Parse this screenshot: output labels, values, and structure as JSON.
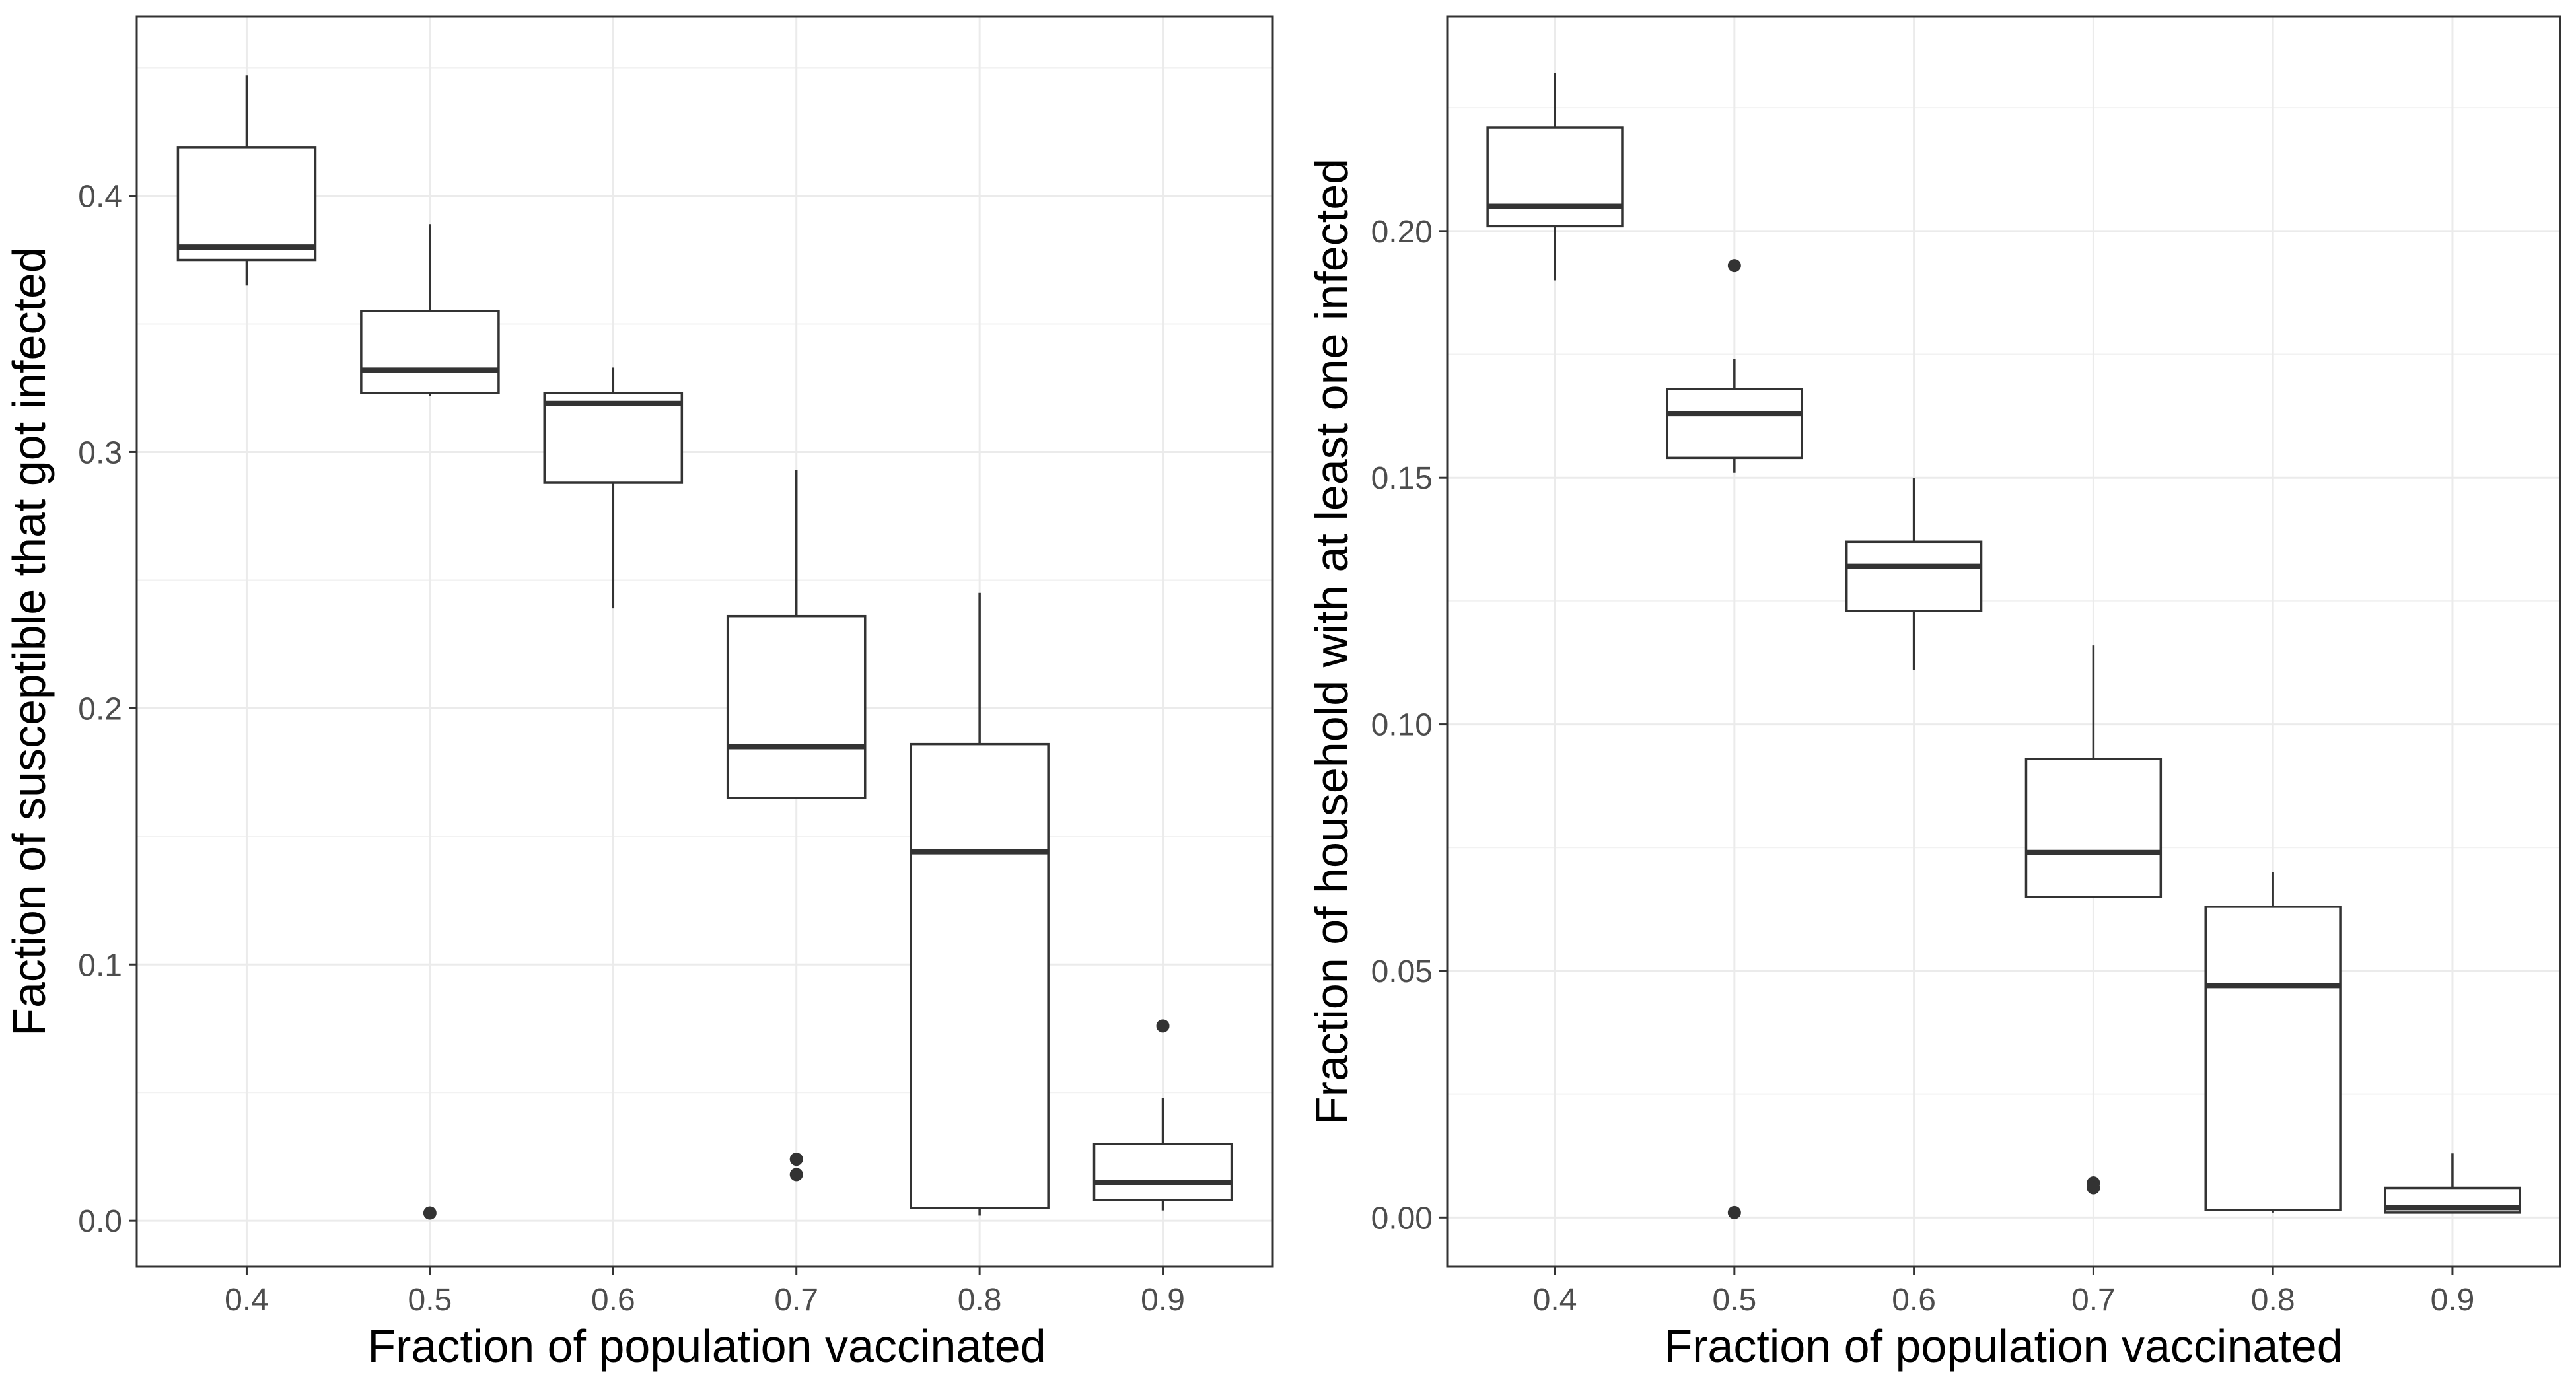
{
  "chart_data": [
    {
      "type": "box",
      "xlabel": "Fraction of population vaccinated",
      "ylabel": "Faction of susceptible that got infected",
      "categories": [
        "0.4",
        "0.5",
        "0.6",
        "0.7",
        "0.8",
        "0.9"
      ],
      "ylim": [
        -0.018,
        0.47
      ],
      "yticks": [
        "0.0",
        "0.1",
        "0.2",
        "0.3",
        "0.4"
      ],
      "grid": true,
      "boxes": [
        {
          "x": "0.4",
          "whisker_low": 0.365,
          "q1": 0.375,
          "median": 0.38,
          "q3": 0.419,
          "whisker_high": 0.447,
          "outliers": []
        },
        {
          "x": "0.5",
          "whisker_low": 0.322,
          "q1": 0.323,
          "median": 0.332,
          "q3": 0.355,
          "whisker_high": 0.389,
          "outliers": [
            0.003
          ]
        },
        {
          "x": "0.6",
          "whisker_low": 0.239,
          "q1": 0.288,
          "median": 0.319,
          "q3": 0.323,
          "whisker_high": 0.333,
          "outliers": []
        },
        {
          "x": "0.7",
          "whisker_low": 0.165,
          "q1": 0.165,
          "median": 0.185,
          "q3": 0.236,
          "whisker_high": 0.293,
          "outliers": [
            0.024,
            0.018
          ]
        },
        {
          "x": "0.8",
          "whisker_low": 0.002,
          "q1": 0.005,
          "median": 0.144,
          "q3": 0.186,
          "whisker_high": 0.245,
          "outliers": []
        },
        {
          "x": "0.9",
          "whisker_low": 0.004,
          "q1": 0.008,
          "median": 0.015,
          "q3": 0.03,
          "whisker_high": 0.048,
          "outliers": [
            0.076
          ]
        }
      ]
    },
    {
      "type": "box",
      "xlabel": "Fraction of population vaccinated",
      "ylabel": "Fraction of household with at least one infected",
      "categories": [
        "0.4",
        "0.5",
        "0.6",
        "0.7",
        "0.8",
        "0.9"
      ],
      "ylim": [
        -0.01,
        0.2435
      ],
      "yticks": [
        "0.00",
        "0.05",
        "0.10",
        "0.15",
        "0.20"
      ],
      "grid": true,
      "boxes": [
        {
          "x": "0.4",
          "whisker_low": 0.19,
          "q1": 0.201,
          "median": 0.205,
          "q3": 0.221,
          "whisker_high": 0.232,
          "outliers": []
        },
        {
          "x": "0.5",
          "whisker_low": 0.151,
          "q1": 0.154,
          "median": 0.163,
          "q3": 0.168,
          "whisker_high": 0.174,
          "outliers": [
            0.193,
            0.001
          ]
        },
        {
          "x": "0.6",
          "whisker_low": 0.111,
          "q1": 0.123,
          "median": 0.132,
          "q3": 0.137,
          "whisker_high": 0.15,
          "outliers": []
        },
        {
          "x": "0.7",
          "whisker_low": 0.065,
          "q1": 0.065,
          "median": 0.074,
          "q3": 0.093,
          "whisker_high": 0.116,
          "outliers": [
            0.007,
            0.006
          ]
        },
        {
          "x": "0.8",
          "whisker_low": 0.001,
          "q1": 0.0015,
          "median": 0.047,
          "q3": 0.063,
          "whisker_high": 0.07,
          "outliers": []
        },
        {
          "x": "0.9",
          "whisker_low": 0.001,
          "q1": 0.001,
          "median": 0.002,
          "q3": 0.006,
          "whisker_high": 0.013,
          "outliers": []
        }
      ]
    }
  ]
}
